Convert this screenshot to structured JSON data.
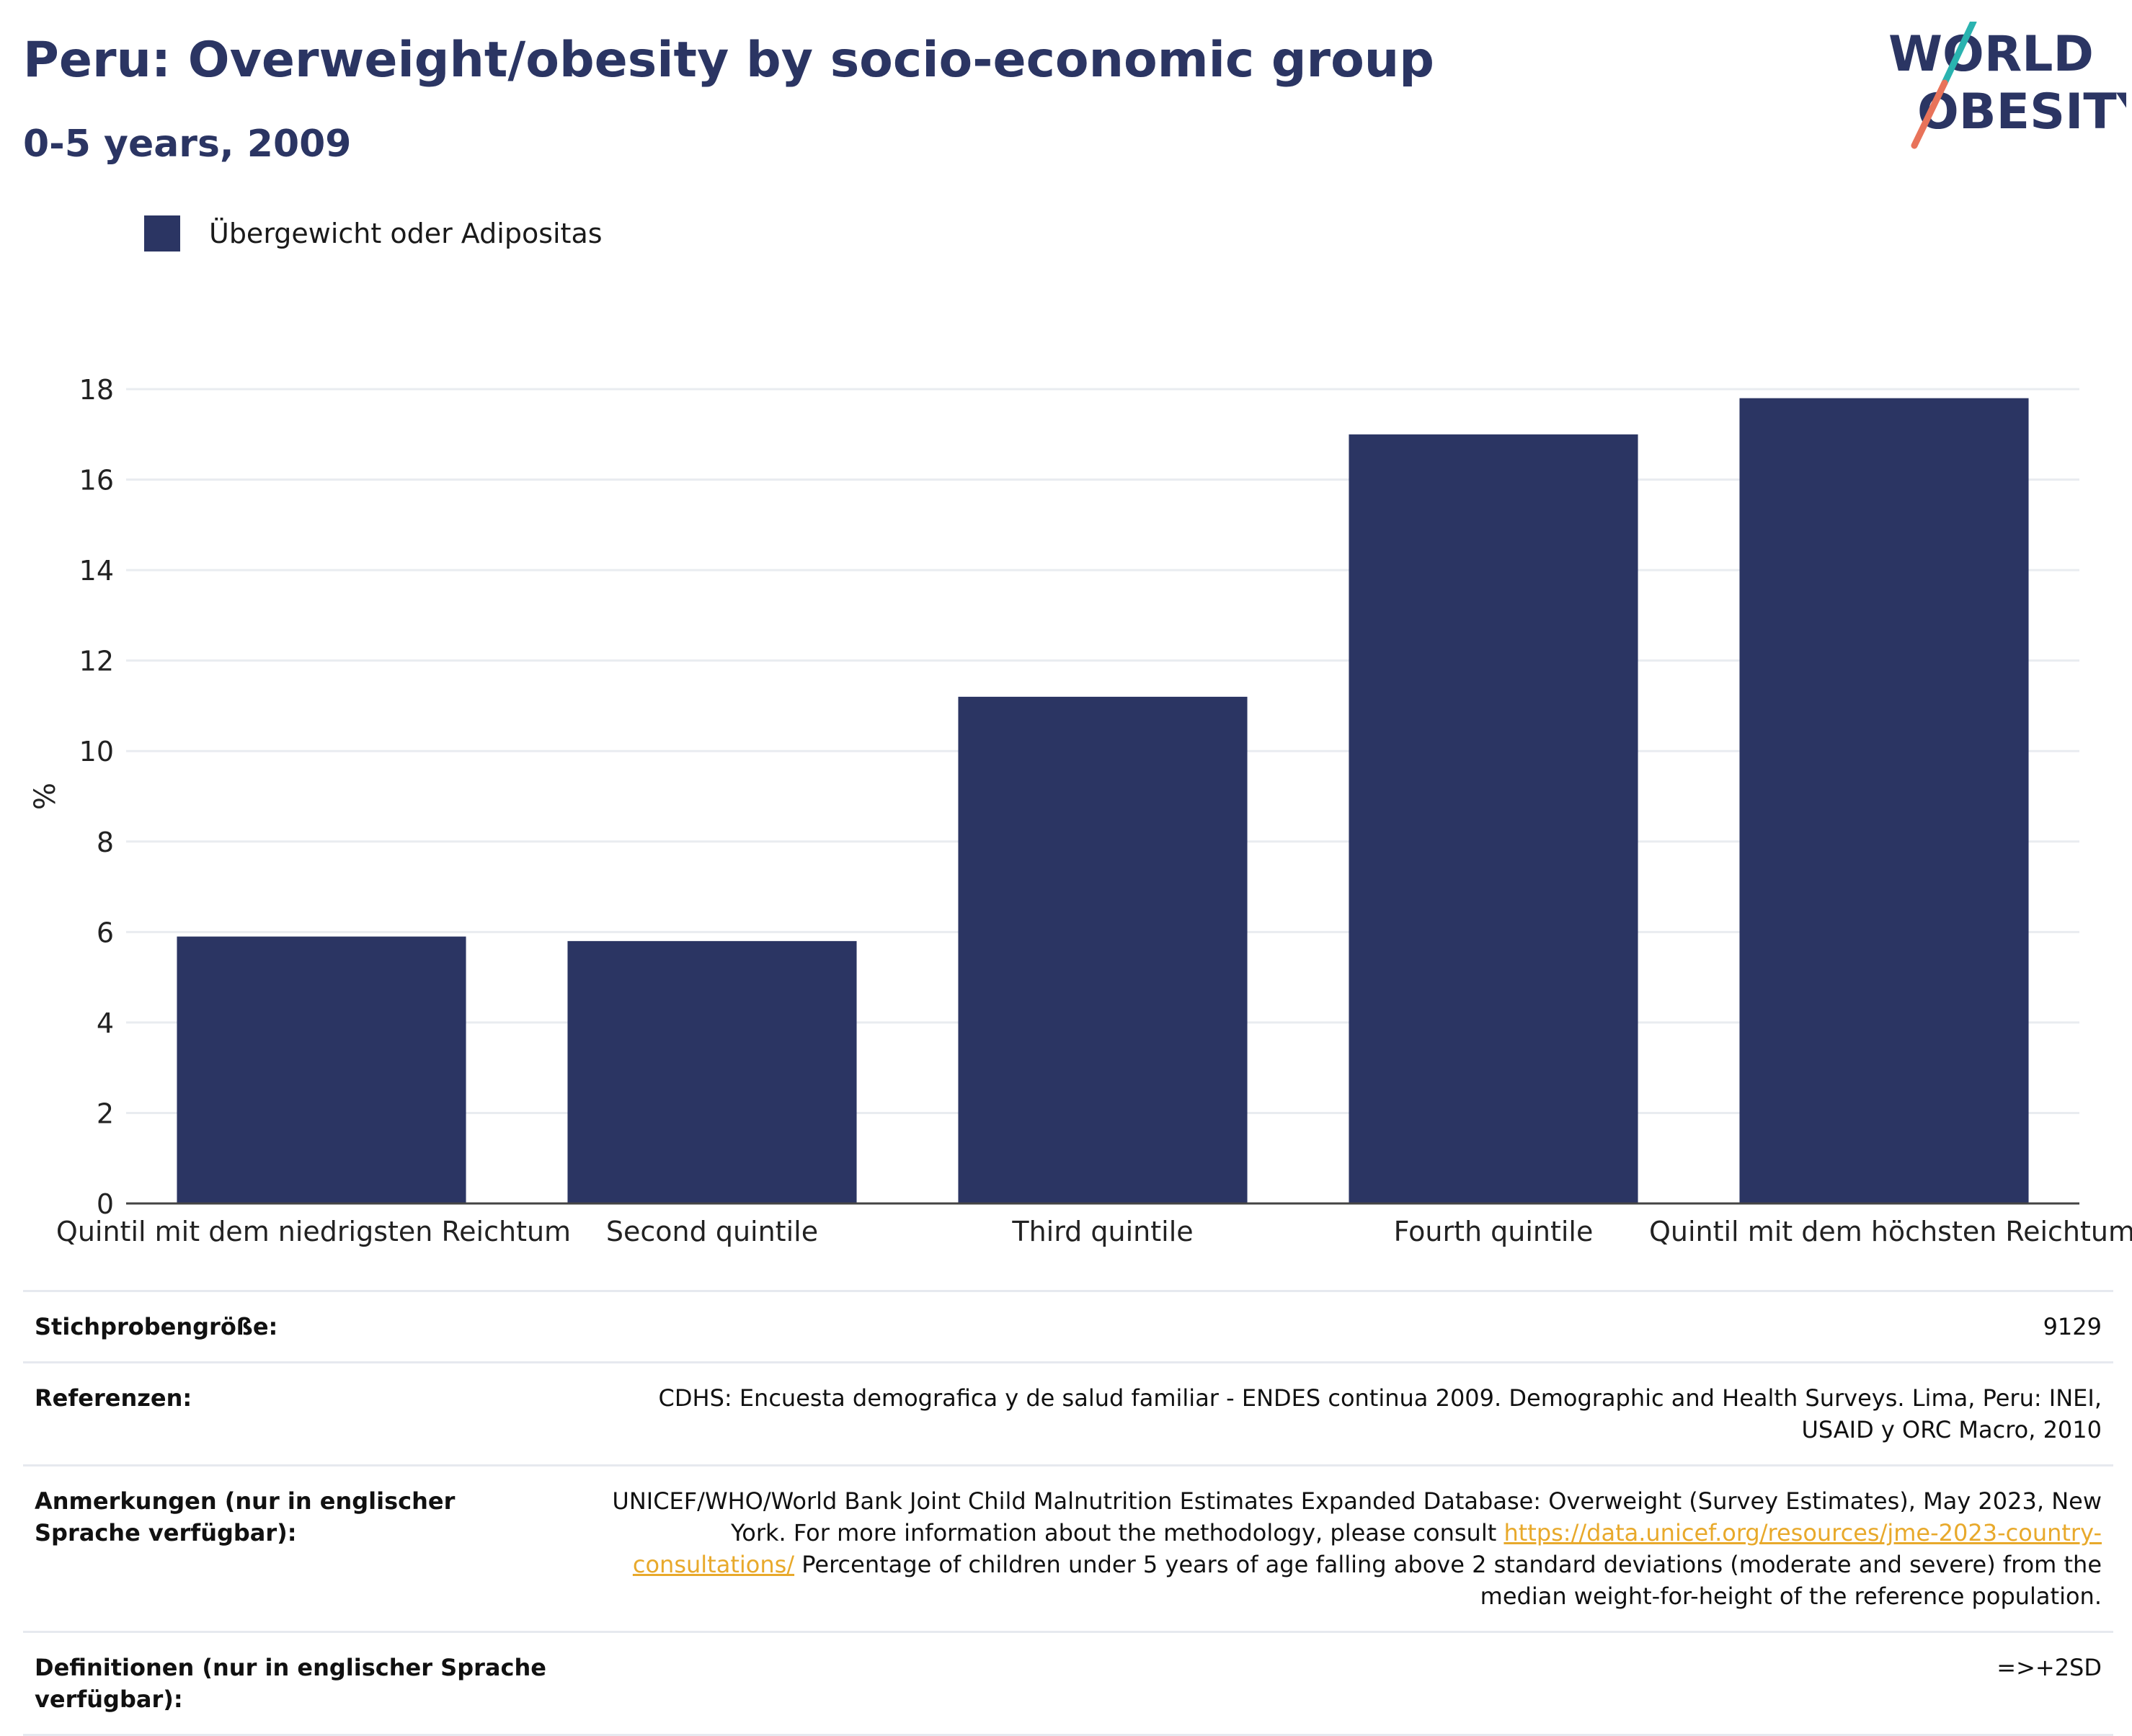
{
  "header": {
    "title": "Peru: Overweight/obesity by socio-economic group",
    "subtitle": "0-5 years, 2009"
  },
  "logo": {
    "line1": "WORLD",
    "line2": "OBESITY",
    "colors": {
      "text": "#2b3563",
      "slash_top": "#2ab3b0",
      "slash_bottom": "#e8735a"
    }
  },
  "legend": {
    "items": [
      {
        "label": "Übergewicht oder Adipositas",
        "color": "#2b3563"
      }
    ]
  },
  "chart_data": {
    "type": "bar",
    "categories": [
      "Quintil mit dem niedrigsten Reichtum",
      "Second quintile",
      "Third quintile",
      "Fourth quintile",
      "Quintil mit dem höchsten Reichtum"
    ],
    "series": [
      {
        "name": "Übergewicht oder Adipositas",
        "values": [
          5.9,
          5.8,
          11.2,
          17.0,
          17.8
        ],
        "color": "#2b3563"
      }
    ],
    "ylabel": "%",
    "ylim": [
      0,
      18
    ],
    "yticks": [
      0,
      2,
      4,
      6,
      8,
      10,
      12,
      14,
      16,
      18
    ],
    "grid": true,
    "legend_position": "top-left"
  },
  "info": {
    "sample_size": {
      "label": "Stichprobengröße:",
      "value": "9129"
    },
    "references": {
      "label": "Referenzen:",
      "value": "CDHS: Encuesta demografica y de salud familiar - ENDES continua 2009. Demographic and Health Surveys. Lima, Peru: INEI, USAID y ORC Macro, 2010"
    },
    "notes": {
      "label": "Anmerkungen (nur in englischer Sprache verfügbar):",
      "value_before": "UNICEF/WHO/World Bank Joint Child Malnutrition Estimates Expanded Database: Overweight (Survey Estimates), May 2023, New York. For more information about the methodology, please consult ",
      "link": "https://data.unicef.org/resources/jme-2023-country-consultations/",
      "value_after": " Percentage of children under 5 years of age falling above 2 standard deviations (moderate and severe) from the median weight-for-height of the reference population."
    },
    "definitions": {
      "label": "Definitionen (nur in englischer Sprache verfügbar):",
      "value": "=>+2SD"
    }
  }
}
